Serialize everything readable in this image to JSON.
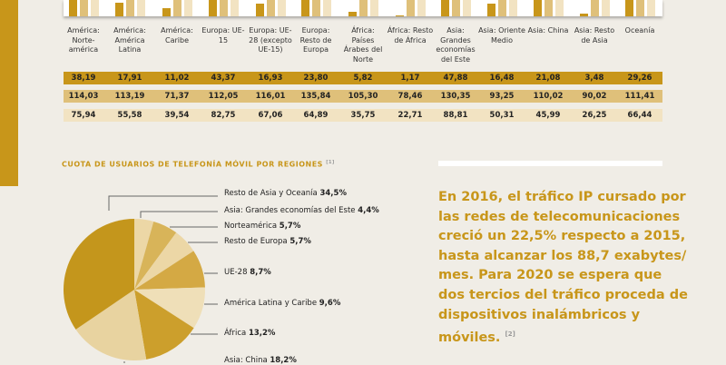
{
  "colors": {
    "dark": "#c8961a",
    "mid": "#dfc07a",
    "light": "#f2e3c2",
    "accent": "#c8961a"
  },
  "table": {
    "columns": [
      "América: Norte-américa",
      "América: América Latina",
      "América: Caribe",
      "Europa: UE-15",
      "Europa: UE-28 (excepto UE-15)",
      "Europa: Resto de Europa",
      "África: Países Árabes del Norte",
      "África: Resto de África",
      "Asia: Grandes economías del Este",
      "Asia: Oriente Medio",
      "Asia: China",
      "Asia: Resto de Asia",
      "Oceanía"
    ],
    "rows": [
      [
        "38,19",
        "17,91",
        "11,02",
        "43,37",
        "16,93",
        "23,80",
        "5,82",
        "1,17",
        "47,88",
        "16,48",
        "21,08",
        "3,48",
        "29,26"
      ],
      [
        "114,03",
        "113,19",
        "71,37",
        "112,05",
        "116,01",
        "135,84",
        "105,30",
        "78,46",
        "130,35",
        "93,25",
        "110,02",
        "90,02",
        "111,41"
      ],
      [
        "75,94",
        "55,58",
        "39,54",
        "82,75",
        "67,06",
        "64,89",
        "35,75",
        "22,71",
        "88,81",
        "50,31",
        "45,99",
        "26,25",
        "66,44"
      ]
    ]
  },
  "chart_data": [
    {
      "type": "bar",
      "categories": [
        "América: Norte-américa",
        "América: América Latina",
        "América: Caribe",
        "Europa: UE-15",
        "Europa: UE-28 (excepto UE-15)",
        "Europa: Resto de Europa",
        "África: Países Árabes del Norte",
        "África: Resto de África",
        "Asia: Grandes economías del Este",
        "Asia: Oriente Medio",
        "Asia: China",
        "Asia: Resto de Asia",
        "Oceanía"
      ],
      "series": [
        {
          "values": [
            38.19,
            17.91,
            11.02,
            43.37,
            16.93,
            23.8,
            5.82,
            1.17,
            47.88,
            16.48,
            21.08,
            3.48,
            29.26
          ],
          "color": "#c8961a"
        },
        {
          "values": [
            114.03,
            113.19,
            71.37,
            112.05,
            116.01,
            135.84,
            105.3,
            78.46,
            130.35,
            93.25,
            110.02,
            90.02,
            111.41
          ],
          "color": "#dfc07a"
        },
        {
          "values": [
            75.94,
            55.58,
            39.54,
            82.75,
            67.06,
            64.89,
            35.75,
            22.71,
            88.81,
            50.31,
            45.99,
            26.25,
            66.44
          ],
          "color": "#f2e3c2"
        }
      ]
    },
    {
      "type": "pie",
      "title": "CUOTA DE USUARIOS DE TELEFONÍA MÓVIL POR REGIONES",
      "title_note": "[1]",
      "slices": [
        {
          "label": "Asia: Grandes economías del Este",
          "value": 4.4,
          "text": "4,4%",
          "color": "#ecd7a6"
        },
        {
          "label": "Norteamérica",
          "value": 5.7,
          "text": "5,7%",
          "color": "#d8b459"
        },
        {
          "label": "Resto de Europa",
          "value": 5.7,
          "text": "5,7%",
          "color": "#ecd7a6"
        },
        {
          "label": "UE-28",
          "value": 8.7,
          "text": "8,7%",
          "color": "#d4a944"
        },
        {
          "label": "América Latina y Caribe",
          "value": 9.6,
          "text": "9,6%",
          "color": "#efdfb8"
        },
        {
          "label": "África",
          "value": 13.2,
          "text": "13,2%",
          "color": "#cc9f2c"
        },
        {
          "label": "Asia: China",
          "value": 18.2,
          "text": "18,2%",
          "color": "#e8d3a0"
        },
        {
          "label": "Resto de Asia y Oceanía",
          "value": 34.5,
          "text": "34,5%",
          "color": "#c4961c"
        }
      ]
    }
  ],
  "callout": {
    "text": "En 2016, el tráfico IP cursado por las redes de telecomunicaciones creció un 22,5% respecto a 2015, hasta alcanzar los 88,7 exabytes/ mes. Para 2020 se espera que dos tercios del tráfico proceda de dispositivos inalámbricos y móviles.",
    "note": "[2]"
  }
}
